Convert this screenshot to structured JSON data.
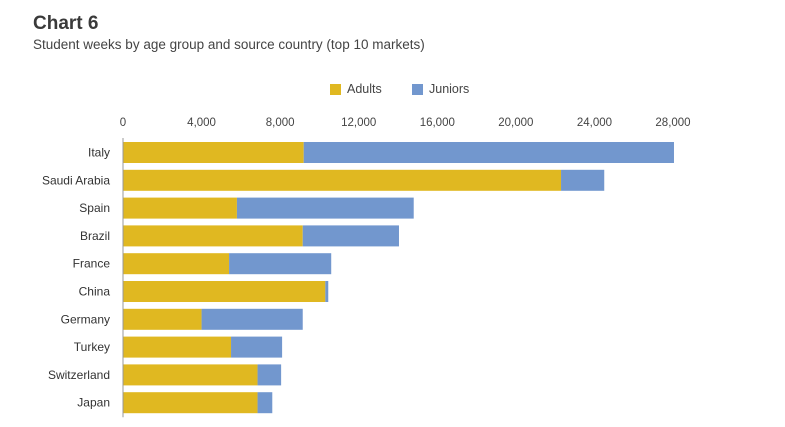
{
  "header": {
    "title": "Chart 6",
    "subtitle": "Student weeks by age group and source country (top 10 markets)"
  },
  "colors": {
    "adults": "#E0B821",
    "juniors": "#7297CE",
    "axis": "#999999"
  },
  "chart_data": {
    "type": "bar",
    "orientation": "horizontal",
    "stacked": true,
    "title": "Chart 6",
    "subtitle": "Student weeks by age group and source country (top 10 markets)",
    "categories": [
      "Italy",
      "Saudi Arabia",
      "Spain",
      "Brazil",
      "France",
      "China",
      "Germany",
      "Turkey",
      "Switzerland",
      "Japan"
    ],
    "series": [
      {
        "name": "Adults",
        "values": [
          9200,
          22300,
          5800,
          9150,
          5400,
          10300,
          4000,
          5500,
          6850,
          6850
        ]
      },
      {
        "name": "Juniors",
        "values": [
          18850,
          2200,
          9000,
          4900,
          5200,
          150,
          5150,
          2600,
          1200,
          750
        ]
      }
    ],
    "xlim": [
      0,
      28000
    ],
    "xticks": [
      0,
      4000,
      8000,
      12000,
      16000,
      20000,
      24000,
      28000
    ],
    "xtick_labels": [
      "0",
      "4,000",
      "8,000",
      "12,000",
      "16,000",
      "20,000",
      "24,000",
      "28,000"
    ],
    "xlabel": "",
    "ylabel": "",
    "grid": false,
    "legend": "top-center"
  }
}
